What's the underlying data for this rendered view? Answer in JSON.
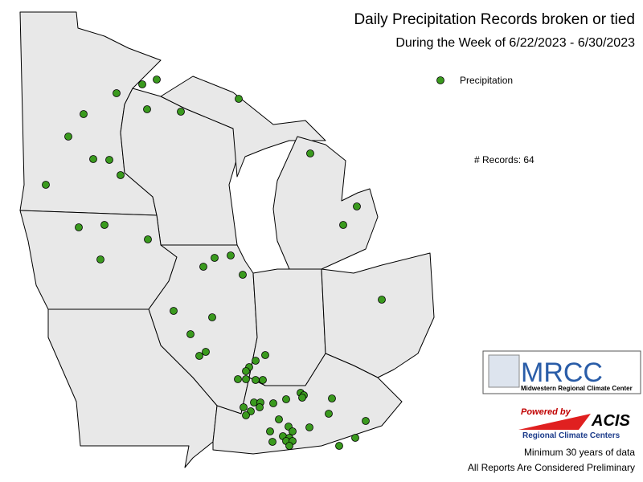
{
  "header": {
    "title": "Daily Precipitation Records broken or tied",
    "subtitle": "During the Week of 6/22/2023 - 6/30/2023"
  },
  "legend": {
    "label": "Precipitation",
    "color": "#3a9a1e"
  },
  "records_count": "# Records: 64",
  "logos": {
    "mrcc": "MRCC",
    "mrcc_name": "Midwestern Regional Climate Center",
    "powered_by": "Powered by",
    "acis": "ACIS",
    "rcc": "Regional Climate Centers"
  },
  "footer": {
    "note1": "Minimum 30 years of data",
    "note2": "All Reports Are Considered Preliminary"
  }
}
